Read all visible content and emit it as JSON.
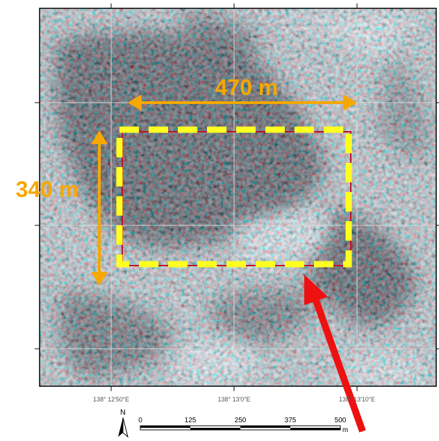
{
  "annotations": {
    "width": "470 m",
    "height": "340 m"
  },
  "grid_labels": [
    "138° 12′50″E",
    "138° 13′0″E",
    "138° 13′10″E"
  ],
  "scale_bar": {
    "labels": [
      "0",
      "125",
      "250",
      "375",
      "500"
    ],
    "unit": "m"
  },
  "north": "N"
}
